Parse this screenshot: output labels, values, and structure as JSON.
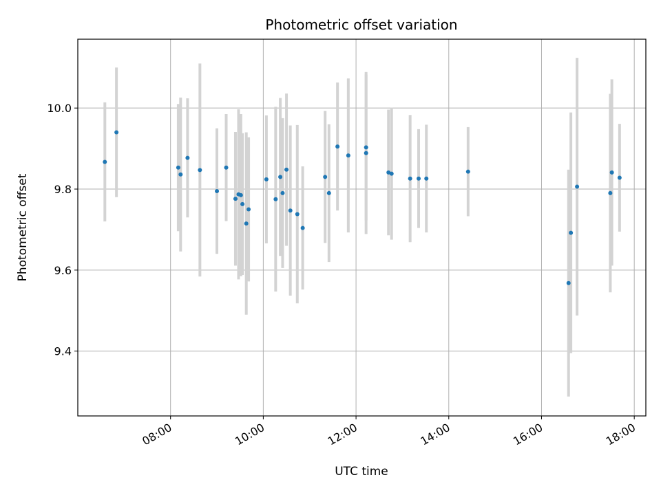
{
  "chart_data": {
    "type": "scatter",
    "title": "Photometric offset variation",
    "xlabel": "UTC time",
    "ylabel": "Photometric offset",
    "xlim": [
      "06:00",
      "18:15"
    ],
    "ylim": [
      9.24,
      10.17
    ],
    "x_ticks": [
      "08:00",
      "10:00",
      "12:00",
      "14:00",
      "16:00",
      "18:00"
    ],
    "y_ticks": [
      9.4,
      9.6,
      9.8,
      10.0
    ],
    "grid": true,
    "colors": {
      "points": "#1f77b4",
      "errorbars": "#d3d3d3",
      "grid": "#b0b0b0"
    },
    "points": [
      {
        "x": "06:35",
        "y": 9.867,
        "err": 0.147
      },
      {
        "x": "06:50",
        "y": 9.94,
        "err": 0.16
      },
      {
        "x": "08:10",
        "y": 9.853,
        "err": 0.157
      },
      {
        "x": "08:13",
        "y": 9.836,
        "err": 0.19
      },
      {
        "x": "08:22",
        "y": 9.877,
        "err": 0.147
      },
      {
        "x": "08:38",
        "y": 9.847,
        "err": 0.263
      },
      {
        "x": "09:00",
        "y": 9.795,
        "err": 0.155
      },
      {
        "x": "09:12",
        "y": 9.853,
        "err": 0.132
      },
      {
        "x": "09:24",
        "y": 9.776,
        "err": 0.165
      },
      {
        "x": "09:28",
        "y": 9.787,
        "err": 0.21
      },
      {
        "x": "09:31",
        "y": 9.785,
        "err": 0.2
      },
      {
        "x": "09:33",
        "y": 9.763,
        "err": 0.175
      },
      {
        "x": "09:38",
        "y": 9.715,
        "err": 0.225
      },
      {
        "x": "09:41",
        "y": 9.75,
        "err": 0.178
      },
      {
        "x": "10:04",
        "y": 9.824,
        "err": 0.158
      },
      {
        "x": "10:16",
        "y": 9.775,
        "err": 0.228
      },
      {
        "x": "10:22",
        "y": 9.83,
        "err": 0.195
      },
      {
        "x": "10:25",
        "y": 9.79,
        "err": 0.185
      },
      {
        "x": "10:30",
        "y": 9.848,
        "err": 0.188
      },
      {
        "x": "10:35",
        "y": 9.747,
        "err": 0.21
      },
      {
        "x": "10:44",
        "y": 9.738,
        "err": 0.22
      },
      {
        "x": "10:51",
        "y": 9.704,
        "err": 0.152
      },
      {
        "x": "11:20",
        "y": 9.83,
        "err": 0.163
      },
      {
        "x": "11:25",
        "y": 9.79,
        "err": 0.17
      },
      {
        "x": "11:36",
        "y": 9.905,
        "err": 0.158
      },
      {
        "x": "11:50",
        "y": 9.883,
        "err": 0.19
      },
      {
        "x": "12:13",
        "y": 9.889,
        "err": 0.2
      },
      {
        "x": "12:13",
        "y": 9.903,
        "err": 0.18
      },
      {
        "x": "12:42",
        "y": 9.841,
        "err": 0.155
      },
      {
        "x": "12:46",
        "y": 9.838,
        "err": 0.163
      },
      {
        "x": "13:10",
        "y": 9.826,
        "err": 0.157
      },
      {
        "x": "13:21",
        "y": 9.826,
        "err": 0.122
      },
      {
        "x": "13:31",
        "y": 9.826,
        "err": 0.133
      },
      {
        "x": "14:25",
        "y": 9.843,
        "err": 0.11
      },
      {
        "x": "16:35",
        "y": 9.568,
        "err": 0.28
      },
      {
        "x": "16:38",
        "y": 9.692,
        "err": 0.297
      },
      {
        "x": "16:46",
        "y": 9.806,
        "err": 0.318
      },
      {
        "x": "17:29",
        "y": 9.79,
        "err": 0.245
      },
      {
        "x": "17:31",
        "y": 9.841,
        "err": 0.23
      },
      {
        "x": "17:41",
        "y": 9.828,
        "err": 0.133
      }
    ]
  }
}
